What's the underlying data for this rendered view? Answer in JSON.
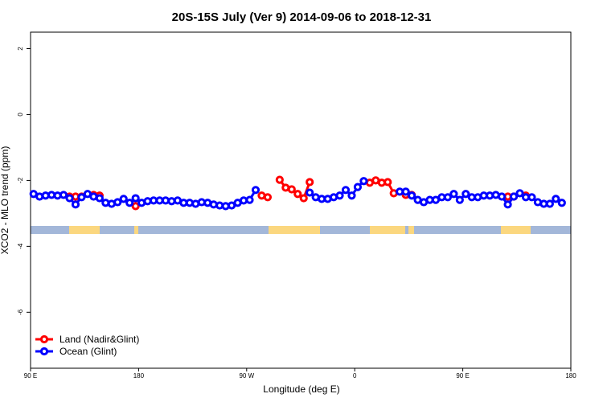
{
  "chart_data": {
    "type": "line",
    "title": "20S-15S July (Ver 9)   2014-09-06 to 2018-12-31",
    "x_label": "Longitude (deg E)",
    "y_label": "XCO2 - MLO trend (ppm)",
    "x": [
      92.5,
      97.5,
      102.5,
      107.5,
      112.5,
      117.5,
      122.5,
      127.5,
      132.5,
      137.5,
      142.5,
      147.5,
      152.5,
      157.5,
      162.5,
      167.5,
      172.5,
      177.5,
      182.5,
      187.5,
      192.5,
      197.5,
      202.5,
      207.5,
      212.5,
      217.5,
      222.5,
      227.5,
      232.5,
      237.5,
      242.5,
      247.5,
      252.5,
      257.5,
      262.5,
      267.5,
      272.5,
      277.5,
      282.5,
      287.5,
      292.5,
      297.5,
      302.5,
      307.5,
      312.5,
      317.5,
      322.5,
      327.5,
      332.5,
      337.5,
      342.5,
      347.5,
      352.5,
      357.5,
      362.5,
      367.5,
      372.5,
      377.5,
      382.5,
      387.5,
      392.5,
      397.5,
      402.5,
      407.5,
      412.5,
      417.5,
      422.5,
      427.5,
      432.5,
      437.5,
      442.5,
      447.5,
      452.5,
      457.5,
      462.5,
      467.5,
      472.5,
      477.5,
      482.5,
      487.5,
      492.5,
      497.5,
      502.5,
      507.5,
      512.5,
      517.5,
      522.5,
      527.5,
      532.5,
      537.5
    ],
    "series": [
      {
        "name": "Land (Nadir&Glint)",
        "color": "#ff0000",
        "values": [
          null,
          null,
          null,
          null,
          null,
          null,
          -2.49,
          -2.49,
          -2.49,
          null,
          -2.44,
          -2.46,
          null,
          null,
          null,
          null,
          null,
          -2.78,
          null,
          null,
          null,
          null,
          null,
          null,
          null,
          null,
          null,
          null,
          null,
          null,
          null,
          null,
          null,
          null,
          null,
          null,
          null,
          null,
          -2.46,
          -2.51,
          null,
          -1.98,
          -2.22,
          -2.27,
          -2.41,
          -2.54,
          -2.05,
          null,
          null,
          null,
          null,
          null,
          null,
          null,
          null,
          null,
          -2.07,
          -2.0,
          -2.07,
          -2.05,
          -2.39,
          null,
          -2.44,
          -2.44,
          null,
          null,
          null,
          null,
          null,
          null,
          null,
          null,
          null,
          null,
          null,
          null,
          null,
          null,
          null,
          -2.49,
          -2.49,
          null,
          -2.46,
          null,
          null,
          null,
          null,
          null,
          null,
          null
        ]
      },
      {
        "name": "Ocean (Glint)",
        "color": "#0000ff",
        "values": [
          -2.41,
          -2.49,
          -2.46,
          -2.44,
          -2.46,
          -2.44,
          -2.54,
          -2.73,
          -2.51,
          -2.41,
          -2.49,
          -2.54,
          -2.68,
          -2.71,
          -2.66,
          -2.56,
          -2.68,
          -2.54,
          -2.68,
          -2.63,
          -2.61,
          -2.61,
          -2.61,
          -2.63,
          -2.61,
          -2.68,
          -2.68,
          -2.71,
          -2.66,
          -2.68,
          -2.73,
          -2.76,
          -2.78,
          -2.76,
          -2.68,
          -2.61,
          -2.59,
          -2.29,
          null,
          null,
          null,
          null,
          null,
          null,
          null,
          null,
          -2.37,
          -2.51,
          -2.56,
          -2.56,
          -2.51,
          -2.46,
          -2.29,
          -2.46,
          -2.2,
          -2.02,
          null,
          null,
          null,
          null,
          null,
          -2.34,
          -2.34,
          -2.46,
          -2.59,
          -2.66,
          -2.59,
          -2.59,
          -2.51,
          -2.51,
          -2.41,
          -2.59,
          -2.41,
          -2.51,
          -2.51,
          -2.46,
          -2.46,
          -2.44,
          -2.49,
          -2.73,
          -2.49,
          -2.39,
          -2.51,
          -2.51,
          -2.66,
          -2.71,
          -2.71,
          -2.56,
          -2.68,
          null
        ]
      }
    ],
    "xlim": [
      90,
      540
    ],
    "ylim": [
      -7.7,
      2.5
    ],
    "xticks": [
      {
        "value": 90,
        "label": "90 E"
      },
      180,
      {
        "value": 270,
        "label": "90 W"
      },
      {
        "value": 360,
        "label": "0"
      },
      {
        "value": 450,
        "label": "90 E"
      },
      {
        "value": 540,
        "label": "180"
      }
    ],
    "yticks": [
      -6,
      -4,
      -2,
      0,
      2
    ],
    "legend": "lower left"
  }
}
